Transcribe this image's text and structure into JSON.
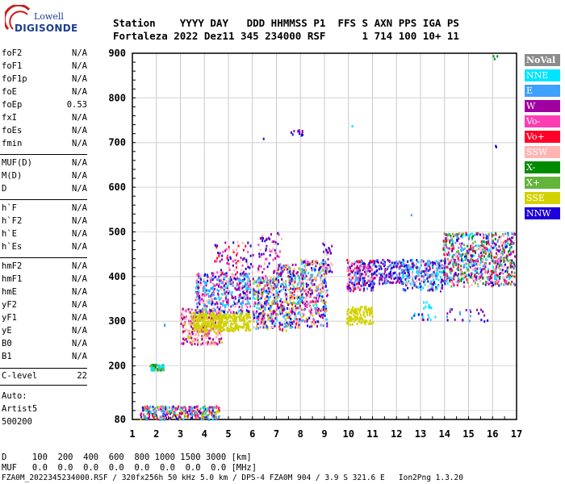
{
  "logo": {
    "line1": "Lowell",
    "line2": "DIGISONDE"
  },
  "header": {
    "line1": "Station    YYYY DAY   DDD HHMMSS P1  FFS S AXN PPS IGA PS",
    "line2": "Fortaleza 2022 Dez11 345 234000 RSF      1 714 100 10+ 11"
  },
  "params_group1": [
    {
      "key": "foF2",
      "value": "N/A"
    },
    {
      "key": "foF1",
      "value": "N/A"
    },
    {
      "key": "foF1p",
      "value": "N/A"
    },
    {
      "key": "foE",
      "value": "N/A"
    },
    {
      "key": "foEp",
      "value": "0.53"
    },
    {
      "key": "fxI",
      "value": "N/A"
    },
    {
      "key": "foEs",
      "value": "N/A"
    },
    {
      "key": "fmin",
      "value": "N/A"
    }
  ],
  "params_group2": [
    {
      "key": "MUF(D)",
      "value": "N/A"
    },
    {
      "key": "M(D)",
      "value": "N/A"
    },
    {
      "key": "D",
      "value": "N/A"
    }
  ],
  "params_group3": [
    {
      "key": "h`F",
      "value": "N/A"
    },
    {
      "key": "h`F2",
      "value": "N/A"
    },
    {
      "key": "h`E",
      "value": "N/A"
    },
    {
      "key": "h`Es",
      "value": "N/A"
    }
  ],
  "params_group4": [
    {
      "key": "hmF2",
      "value": "N/A"
    },
    {
      "key": "hmF1",
      "value": "N/A"
    },
    {
      "key": "hmE",
      "value": "N/A"
    },
    {
      "key": "yF2",
      "value": "N/A"
    },
    {
      "key": "yF1",
      "value": "N/A"
    },
    {
      "key": "yE",
      "value": "N/A"
    },
    {
      "key": "B0",
      "value": "N/A"
    },
    {
      "key": "B1",
      "value": "N/A"
    }
  ],
  "clevel": {
    "key": "C-level",
    "value": "22"
  },
  "auto": {
    "line1": "Auto:",
    "line2": "Artist5",
    "line3": "500200"
  },
  "bottom": {
    "line1": "D     100  200  400  600  800 1000 1500 3000 [km]",
    "line2": "MUF   0.0  0.0  0.0  0.0  0.0  0.0  0.0  0.0 [MHz]",
    "line3": "FZA0M_2022345234000.RSF / 320fx256h 50 kHz 5.0 km / DPS-4 FZA0M 904 / 3.9 S 321.6 E   Ion2Png 1.3.20"
  },
  "legend": [
    {
      "label": "NoVal",
      "color": "#8c8c8c"
    },
    {
      "label": "NNE",
      "color": "#00e5ff"
    },
    {
      "label": "E",
      "color": "#3ea0ff"
    },
    {
      "label": "W",
      "color": "#a000a0"
    },
    {
      "label": "Vo-",
      "color": "#ff3cb4"
    },
    {
      "label": "Vo+",
      "color": "#ff0028"
    },
    {
      "label": "SSW",
      "color": "#ffb4b4"
    },
    {
      "label": "X-",
      "color": "#008c00"
    },
    {
      "label": "X+",
      "color": "#64b43c"
    },
    {
      "label": "SSE",
      "color": "#d2d200"
    },
    {
      "label": "NNW",
      "color": "#1e00dc"
    }
  ],
  "chart_data": {
    "type": "scatter",
    "xlim": [
      1,
      17
    ],
    "ylim": [
      80,
      900
    ],
    "x_ticks": [
      "1",
      "2",
      "3",
      "4",
      "5",
      "6",
      "7",
      "8",
      "9",
      "10",
      "11",
      "12",
      "13",
      "14",
      "15",
      "16",
      "17"
    ],
    "y_ticks": [
      "80",
      "200",
      "300",
      "400",
      "500",
      "600",
      "700",
      "800",
      "900"
    ],
    "y_tick_values": [
      80,
      200,
      300,
      400,
      500,
      600,
      700,
      800,
      900
    ],
    "grid": true,
    "clusters": [
      {
        "x": [
          1.3,
          4.6
        ],
        "y": [
          82,
          112
        ],
        "colors": [
          "NNE",
          "E",
          "W",
          "Vo-",
          "Vo+",
          "X+",
          "NNW",
          "SSE"
        ],
        "n": 300
      },
      {
        "x": [
          1.7,
          2.3
        ],
        "y": [
          192,
          205
        ],
        "colors": [
          "NNE",
          "X-",
          "X+"
        ],
        "n": 60
      },
      {
        "x": [
          3.0,
          4.7
        ],
        "y": [
          250,
          330
        ],
        "colors": [
          "SSW",
          "Vo-",
          "SSE",
          "W"
        ],
        "n": 320
      },
      {
        "x": [
          3.5,
          5.9
        ],
        "y": [
          280,
          320
        ],
        "colors": [
          "SSE"
        ],
        "n": 360
      },
      {
        "x": [
          3.6,
          5.9
        ],
        "y": [
          320,
          410
        ],
        "colors": [
          "E",
          "NNE",
          "W",
          "Vo-",
          "SSW",
          "NNW"
        ],
        "n": 420
      },
      {
        "x": [
          4.4,
          6.0
        ],
        "y": [
          400,
          480
        ],
        "colors": [
          "W",
          "SSW",
          "Vo-",
          "Vo+",
          "NNW"
        ],
        "n": 80
      },
      {
        "x": [
          6.0,
          7.0
        ],
        "y": [
          285,
          400
        ],
        "colors": [
          "SSE",
          "E",
          "W",
          "Vo-",
          "SSW",
          "NNW",
          "NNE"
        ],
        "n": 300
      },
      {
        "x": [
          6.2,
          7.2
        ],
        "y": [
          400,
          500
        ],
        "colors": [
          "W",
          "Vo-",
          "SSW",
          "NNW"
        ],
        "n": 70
      },
      {
        "x": [
          7.0,
          8.1
        ],
        "y": [
          280,
          430
        ],
        "colors": [
          "SSE",
          "E",
          "W",
          "SSW",
          "NNE",
          "NNW",
          "Vo+"
        ],
        "n": 320
      },
      {
        "x": [
          8.0,
          9.1
        ],
        "y": [
          290,
          440
        ],
        "colors": [
          "SSE",
          "E",
          "W",
          "SSW",
          "NNW",
          "NNE",
          "Vo-"
        ],
        "n": 320
      },
      {
        "x": [
          8.9,
          9.3
        ],
        "y": [
          410,
          490
        ],
        "colors": [
          "W",
          "SSW",
          "NNW"
        ],
        "n": 30
      },
      {
        "x": [
          7.5,
          8.2
        ],
        "y": [
          718,
          732
        ],
        "colors": [
          "NNW",
          "W"
        ],
        "n": 12
      },
      {
        "x": [
          9.9,
          11.0
        ],
        "y": [
          295,
          335
        ],
        "colors": [
          "SSE"
        ],
        "n": 120
      },
      {
        "x": [
          9.9,
          11.0
        ],
        "y": [
          370,
          440
        ],
        "colors": [
          "W",
          "SSW",
          "E",
          "NNW",
          "Vo+",
          "Vo-"
        ],
        "n": 220
      },
      {
        "x": [
          11.0,
          12.2
        ],
        "y": [
          385,
          440
        ],
        "colors": [
          "NNW",
          "E",
          "W"
        ],
        "n": 140
      },
      {
        "x": [
          12.2,
          14.0
        ],
        "y": [
          370,
          440
        ],
        "colors": [
          "NNW",
          "E",
          "W",
          "SSW",
          "NNE"
        ],
        "n": 300
      },
      {
        "x": [
          13.1,
          13.5
        ],
        "y": [
          330,
          345
        ],
        "colors": [
          "NNE"
        ],
        "n": 10
      },
      {
        "x": [
          12.6,
          13.6
        ],
        "y": [
          305,
          320
        ],
        "colors": [
          "W",
          "NNW",
          "NNE"
        ],
        "n": 15
      },
      {
        "x": [
          13.9,
          16.9
        ],
        "y": [
          380,
          500
        ],
        "colors": [
          "NNW",
          "W",
          "E",
          "SSW",
          "Vo-",
          "Vo+",
          "NNE",
          "X+",
          "X-"
        ],
        "n": 720
      },
      {
        "x": [
          14.0,
          15.8
        ],
        "y": [
          300,
          330
        ],
        "colors": [
          "W",
          "NNW",
          "E"
        ],
        "n": 25
      },
      {
        "x": [
          16.0,
          16.2
        ],
        "y": [
          888,
          900
        ],
        "colors": [
          "X-"
        ],
        "n": 3
      },
      {
        "x": [
          16.1,
          16.2
        ],
        "y": [
          692,
          698
        ],
        "colors": [
          "NNW"
        ],
        "n": 2
      },
      {
        "x": [
          6.4,
          6.5
        ],
        "y": [
          708,
          712
        ],
        "colors": [
          "NNW"
        ],
        "n": 1
      },
      {
        "x": [
          10.1,
          10.2
        ],
        "y": [
          735,
          742
        ],
        "colors": [
          "NNE"
        ],
        "n": 1
      },
      {
        "x": [
          12.5,
          12.6
        ],
        "y": [
          540,
          548
        ],
        "colors": [
          "E"
        ],
        "n": 1
      },
      {
        "x": [
          2.3,
          2.5
        ],
        "y": [
          290,
          298
        ],
        "colors": [
          "E"
        ],
        "n": 2
      }
    ]
  }
}
